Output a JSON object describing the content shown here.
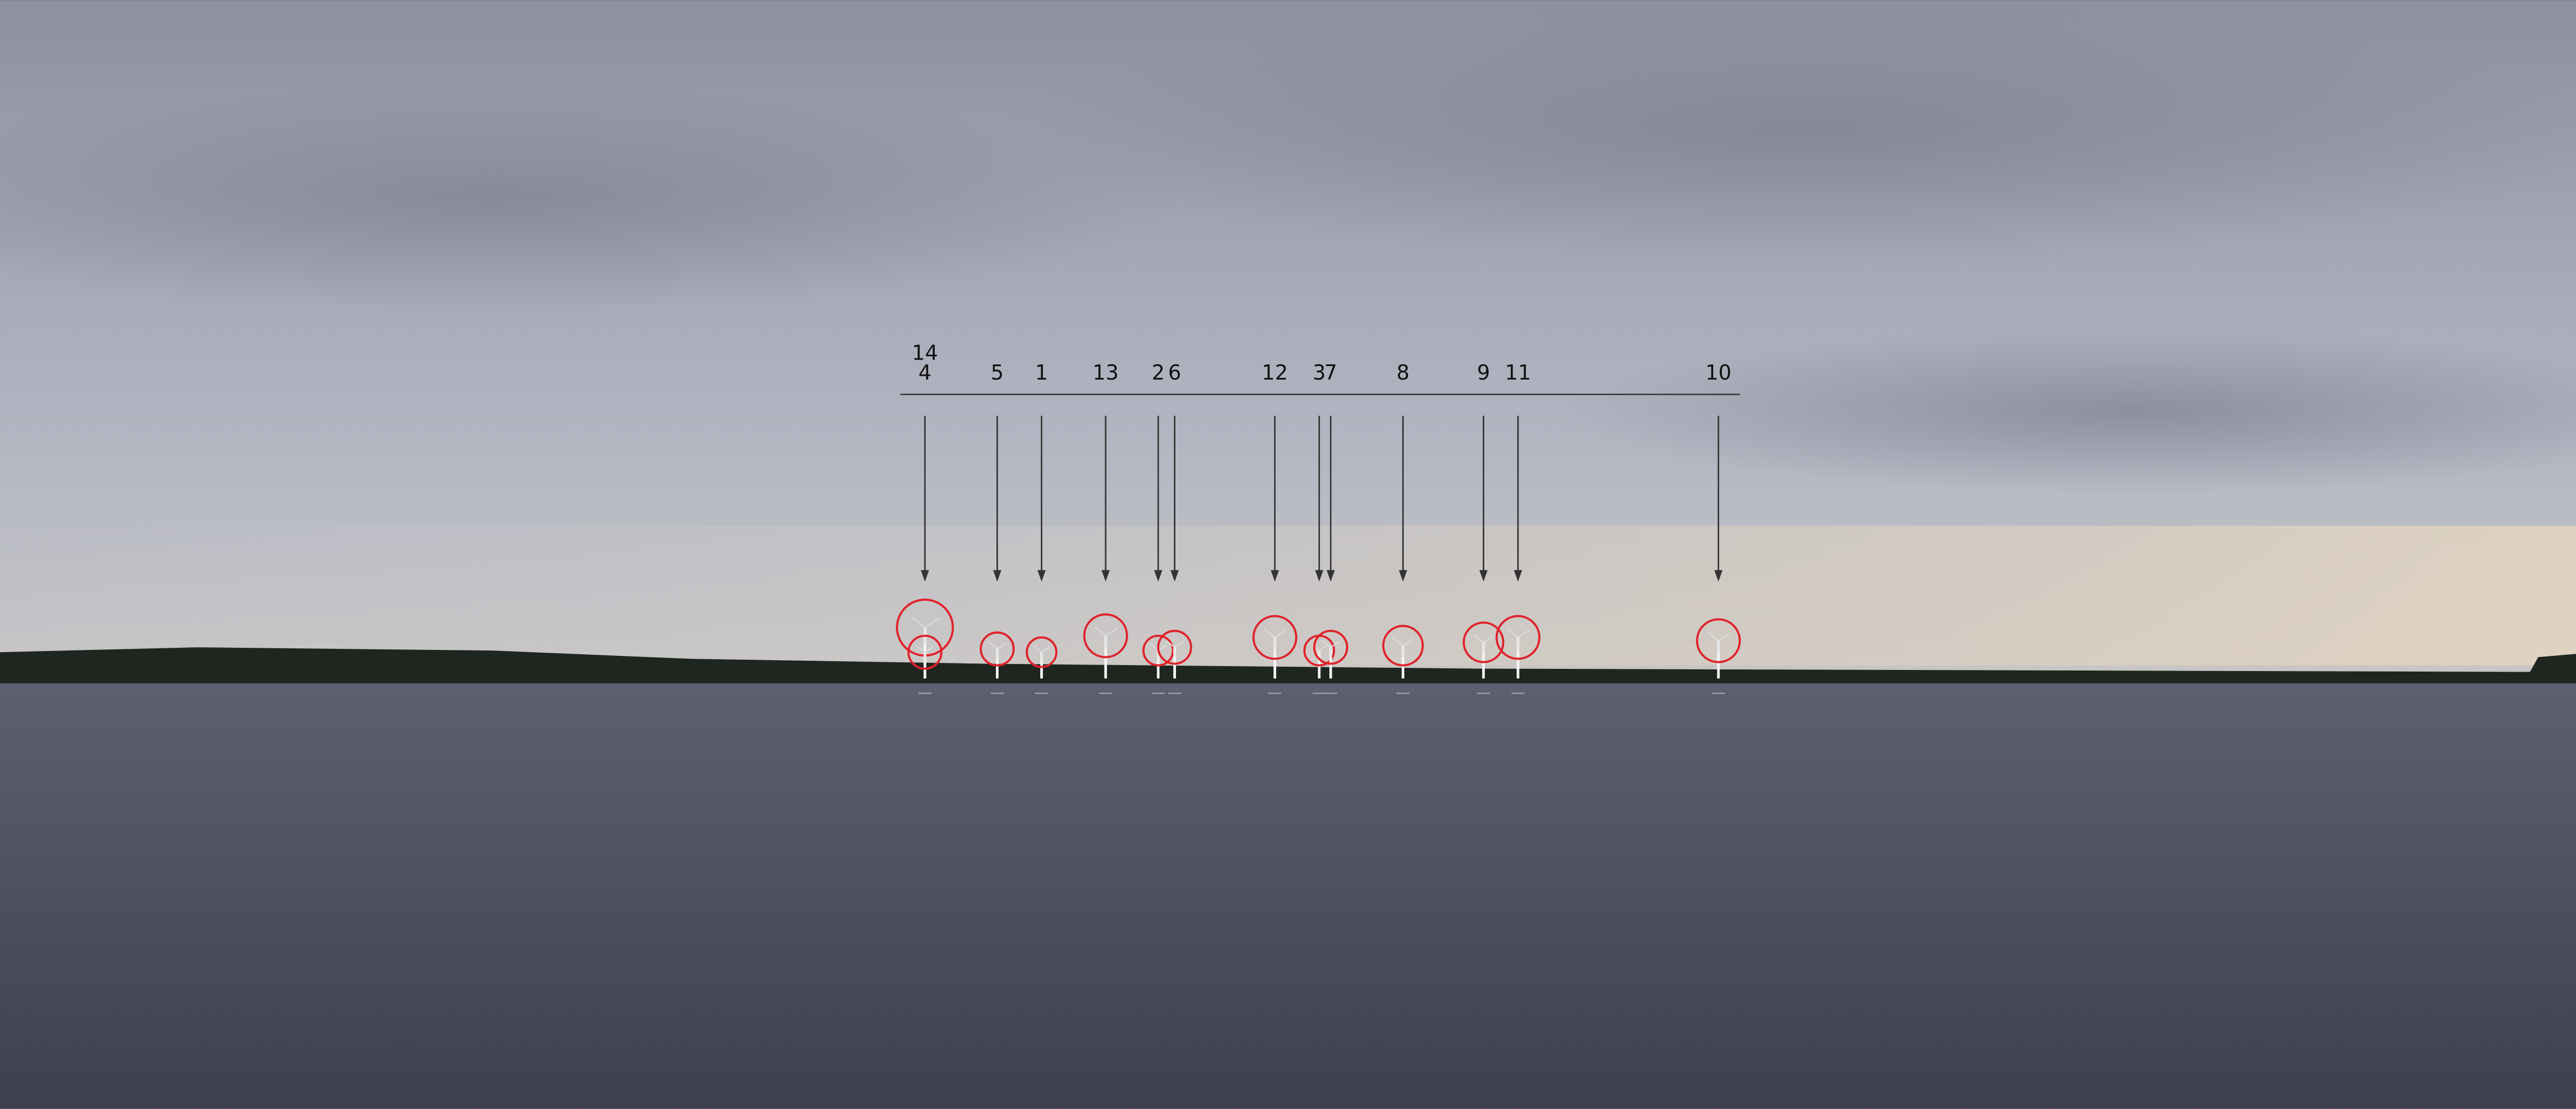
{
  "turbine_labels": [
    "14",
    "4",
    "5",
    "1",
    "13",
    "2",
    "6",
    "12",
    "3",
    "7",
    "8",
    "9",
    "11",
    "10"
  ]
}
